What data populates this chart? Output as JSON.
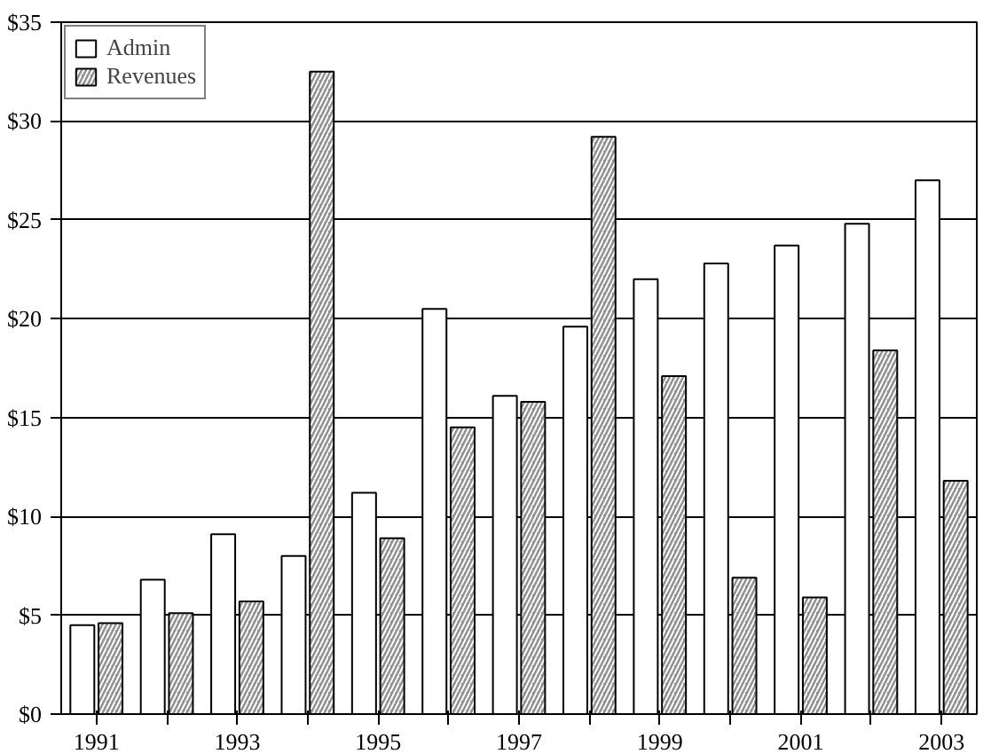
{
  "chart_data": {
    "type": "bar",
    "categories": [
      "1991",
      null,
      "1993",
      null,
      "1995",
      null,
      "1997",
      null,
      "1999",
      null,
      "2001",
      null,
      "2003"
    ],
    "series": [
      {
        "name": "Admin",
        "color": "#ffffff",
        "values": [
          4.5,
          6.8,
          9.1,
          8.0,
          11.2,
          20.5,
          16.1,
          19.6,
          22.0,
          22.8,
          23.7,
          24.8,
          27.0
        ]
      },
      {
        "name": "Revenues",
        "color": "#909090",
        "values": [
          4.6,
          5.1,
          5.7,
          32.5,
          8.9,
          14.5,
          15.8,
          29.2,
          17.1,
          6.9,
          5.9,
          18.4,
          11.8
        ]
      }
    ],
    "ylim": [
      0,
      35
    ],
    "yticks": [
      {
        "value": 0,
        "label": "$0"
      },
      {
        "value": 5,
        "label": "$5"
      },
      {
        "value": 10,
        "label": "$10"
      },
      {
        "value": 15,
        "label": "$15"
      },
      {
        "value": 20,
        "label": "$20"
      },
      {
        "value": 25,
        "label": "$25"
      },
      {
        "value": 30,
        "label": "$30"
      },
      {
        "value": 35,
        "label": "$35"
      }
    ],
    "grid": "y",
    "legend": "top left"
  }
}
